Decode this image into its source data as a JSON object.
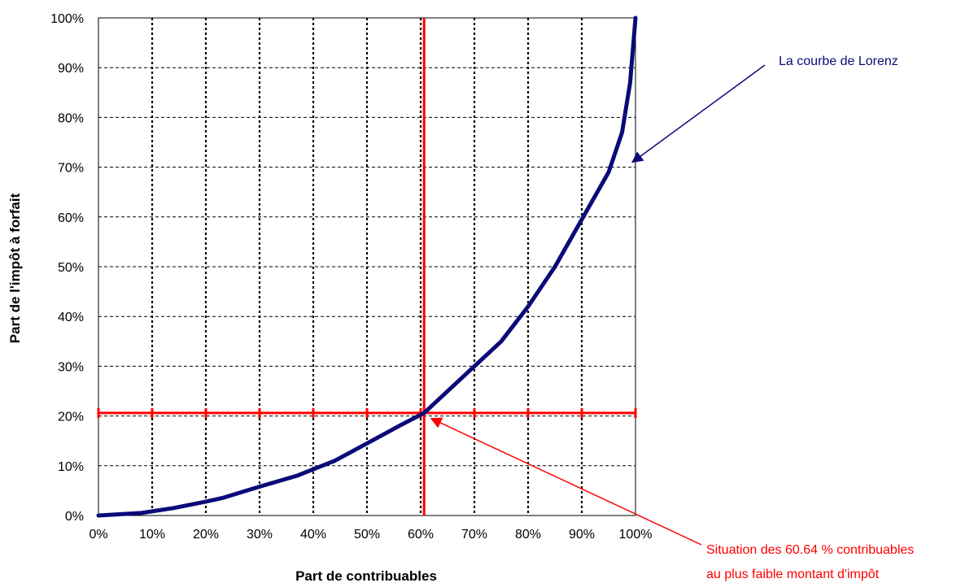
{
  "chart_data": {
    "type": "line",
    "title": "",
    "xlabel": "Part de contribuables",
    "ylabel": "Part de l'impôt à forfait",
    "xlim": [
      0,
      100
    ],
    "ylim": [
      0,
      100
    ],
    "grid": true,
    "x_ticks": [
      "0%",
      "10%",
      "20%",
      "30%",
      "40%",
      "50%",
      "60%",
      "70%",
      "80%",
      "90%",
      "100%"
    ],
    "y_ticks": [
      "0%",
      "10%",
      "20%",
      "30%",
      "40%",
      "50%",
      "60%",
      "70%",
      "80%",
      "90%",
      "100%"
    ],
    "series": [
      {
        "name": "La courbe de Lorenz",
        "color": "#0a0a78",
        "x": [
          0,
          8,
          14,
          20,
          23,
          30,
          37,
          44,
          50,
          56,
          60.64,
          66,
          70,
          75,
          80,
          85,
          90,
          95,
          97.5,
          99,
          100
        ],
        "y": [
          0,
          0.5,
          1.5,
          2.8,
          3.5,
          5.8,
          8,
          11,
          14.5,
          18,
          20.6,
          26,
          30,
          35,
          42,
          50,
          59.5,
          69,
          77,
          87,
          100
        ]
      }
    ],
    "reference_lines": {
      "color": "#ff0000",
      "x": 60.64,
      "y": 20.6
    },
    "annotations": [
      {
        "text": "La courbe de Lorenz",
        "color": "#0a0a78",
        "points_to": [
          98.5,
          71
        ]
      },
      {
        "lines": [
          "Situation des 60.64 % contribuables",
          "au plus faible montant d'impôt"
        ],
        "color": "#ff0000",
        "points_to": [
          61.5,
          19.5
        ]
      }
    ]
  }
}
